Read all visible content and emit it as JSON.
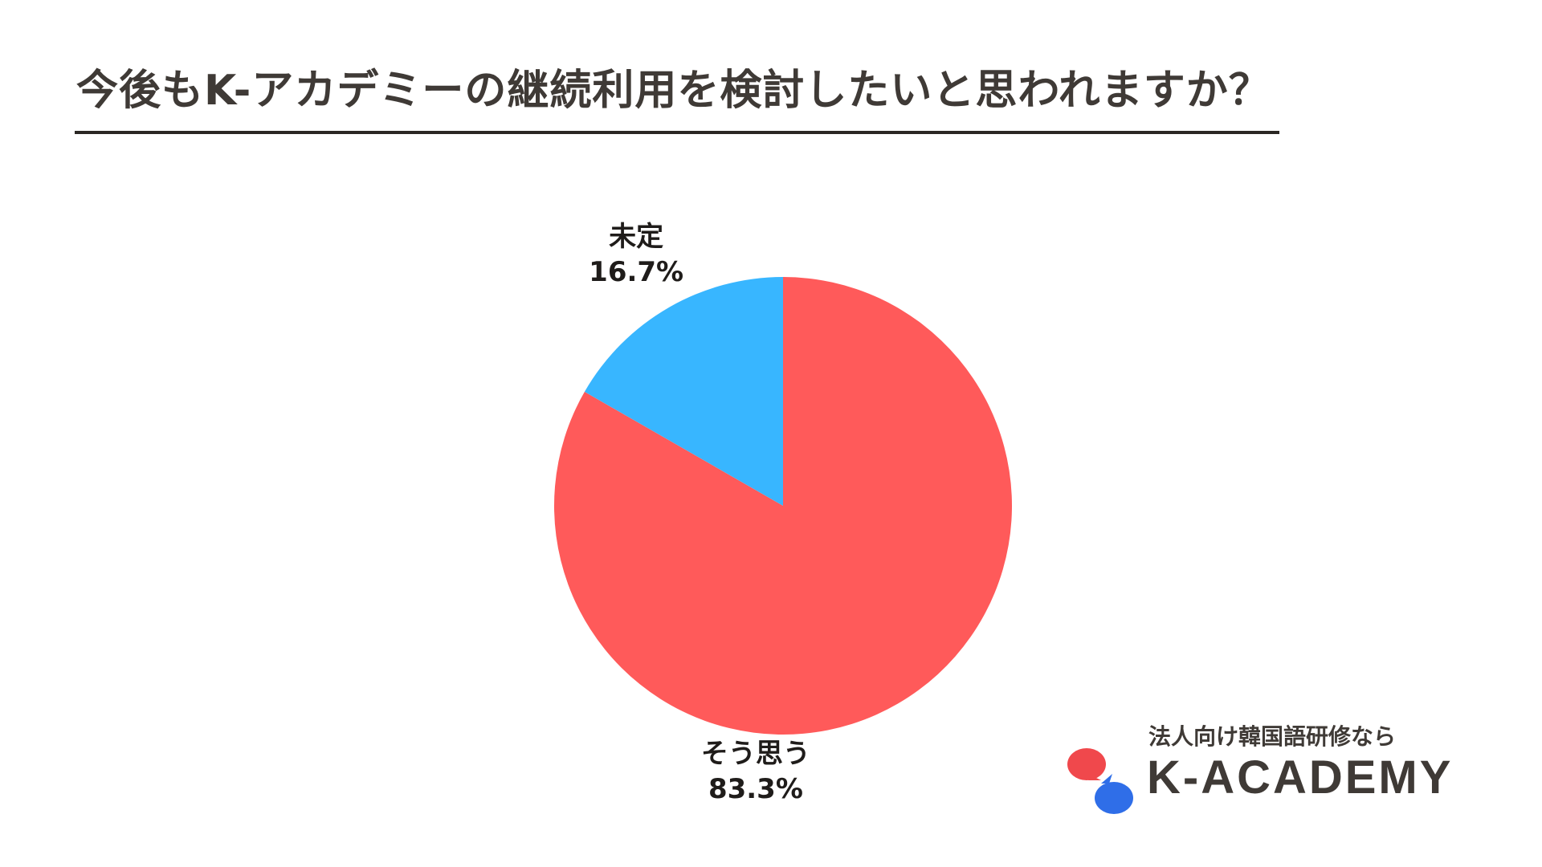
{
  "title": "今後もK-アカデミーの継続利用を検討したいと思われますか？",
  "chart_data": {
    "type": "pie",
    "title": "今後もK-アカデミーの継続利用を検討したいと思われますか？",
    "slices": [
      {
        "label": "そう思う",
        "value": 83.3,
        "value_label": "83.3%",
        "color": "#ff5a5a"
      },
      {
        "label": "未定",
        "value": 16.7,
        "value_label": "16.7%",
        "color": "#38b6ff"
      }
    ]
  },
  "brand": {
    "tagline": "法人向け韓国語研修なら",
    "name": "K-ACADEMY",
    "logo_colors": {
      "red": "#f0484c",
      "blue": "#2f6ee8"
    }
  }
}
